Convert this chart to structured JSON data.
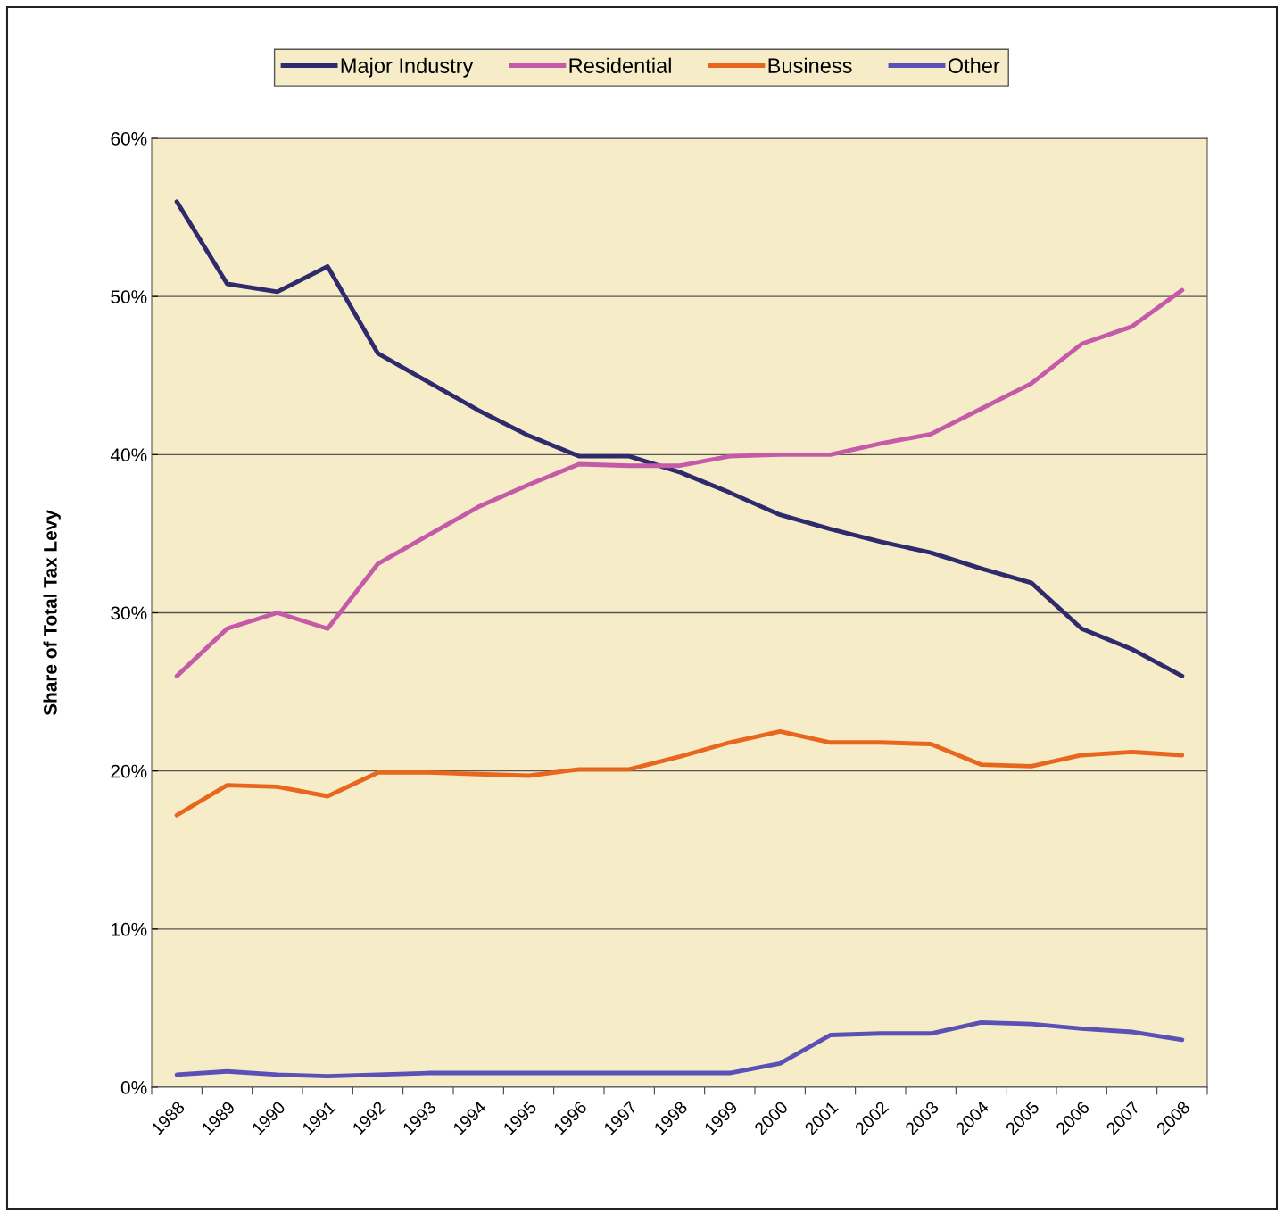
{
  "chart_data": {
    "type": "line",
    "ylabel": "Share of Total Tax Levy",
    "categories": [
      "1988",
      "1989",
      "1990",
      "1991",
      "1992",
      "1993",
      "1994",
      "1995",
      "1996",
      "1997",
      "1998",
      "1999",
      "2000",
      "2001",
      "2002",
      "2003",
      "2004",
      "2005",
      "2006",
      "2007",
      "2008"
    ],
    "series": [
      {
        "name": "Major Industry",
        "color": "#2e2a6b",
        "values": [
          56.0,
          50.8,
          50.3,
          51.9,
          46.4,
          44.6,
          42.8,
          41.2,
          39.9,
          39.9,
          38.9,
          37.6,
          36.2,
          35.3,
          34.5,
          33.8,
          32.8,
          31.9,
          29.0,
          27.7,
          26.0
        ]
      },
      {
        "name": "Residential",
        "color": "#c45aa8",
        "values": [
          26.0,
          29.0,
          30.0,
          29.0,
          33.1,
          34.9,
          36.7,
          38.1,
          39.4,
          39.3,
          39.3,
          39.9,
          40.0,
          40.0,
          40.7,
          41.3,
          42.9,
          44.5,
          47.0,
          48.1,
          50.4
        ]
      },
      {
        "name": "Business",
        "color": "#e8661e",
        "values": [
          17.2,
          19.1,
          19.0,
          18.4,
          19.9,
          19.9,
          19.8,
          19.7,
          20.1,
          20.1,
          20.9,
          21.8,
          22.5,
          21.8,
          21.8,
          21.7,
          20.4,
          20.3,
          21.0,
          21.2,
          21.0
        ]
      },
      {
        "name": "Other",
        "color": "#5a50b5",
        "values": [
          0.8,
          1.0,
          0.8,
          0.7,
          0.8,
          0.9,
          0.9,
          0.9,
          0.9,
          0.9,
          0.9,
          0.9,
          1.5,
          3.3,
          3.4,
          3.4,
          4.1,
          4.0,
          3.7,
          3.5,
          3.0
        ]
      }
    ],
    "ylim": [
      0,
      60
    ],
    "yticks": [
      {
        "value": 0,
        "label": "0%"
      },
      {
        "value": 10,
        "label": "10%"
      },
      {
        "value": 20,
        "label": "20%"
      },
      {
        "value": 30,
        "label": "30%"
      },
      {
        "value": 40,
        "label": "40%"
      },
      {
        "value": 50,
        "label": "50%"
      },
      {
        "value": 60,
        "label": "60%"
      }
    ],
    "grid": "y",
    "legend": "top",
    "marker": "none",
    "line_style": "solid"
  }
}
